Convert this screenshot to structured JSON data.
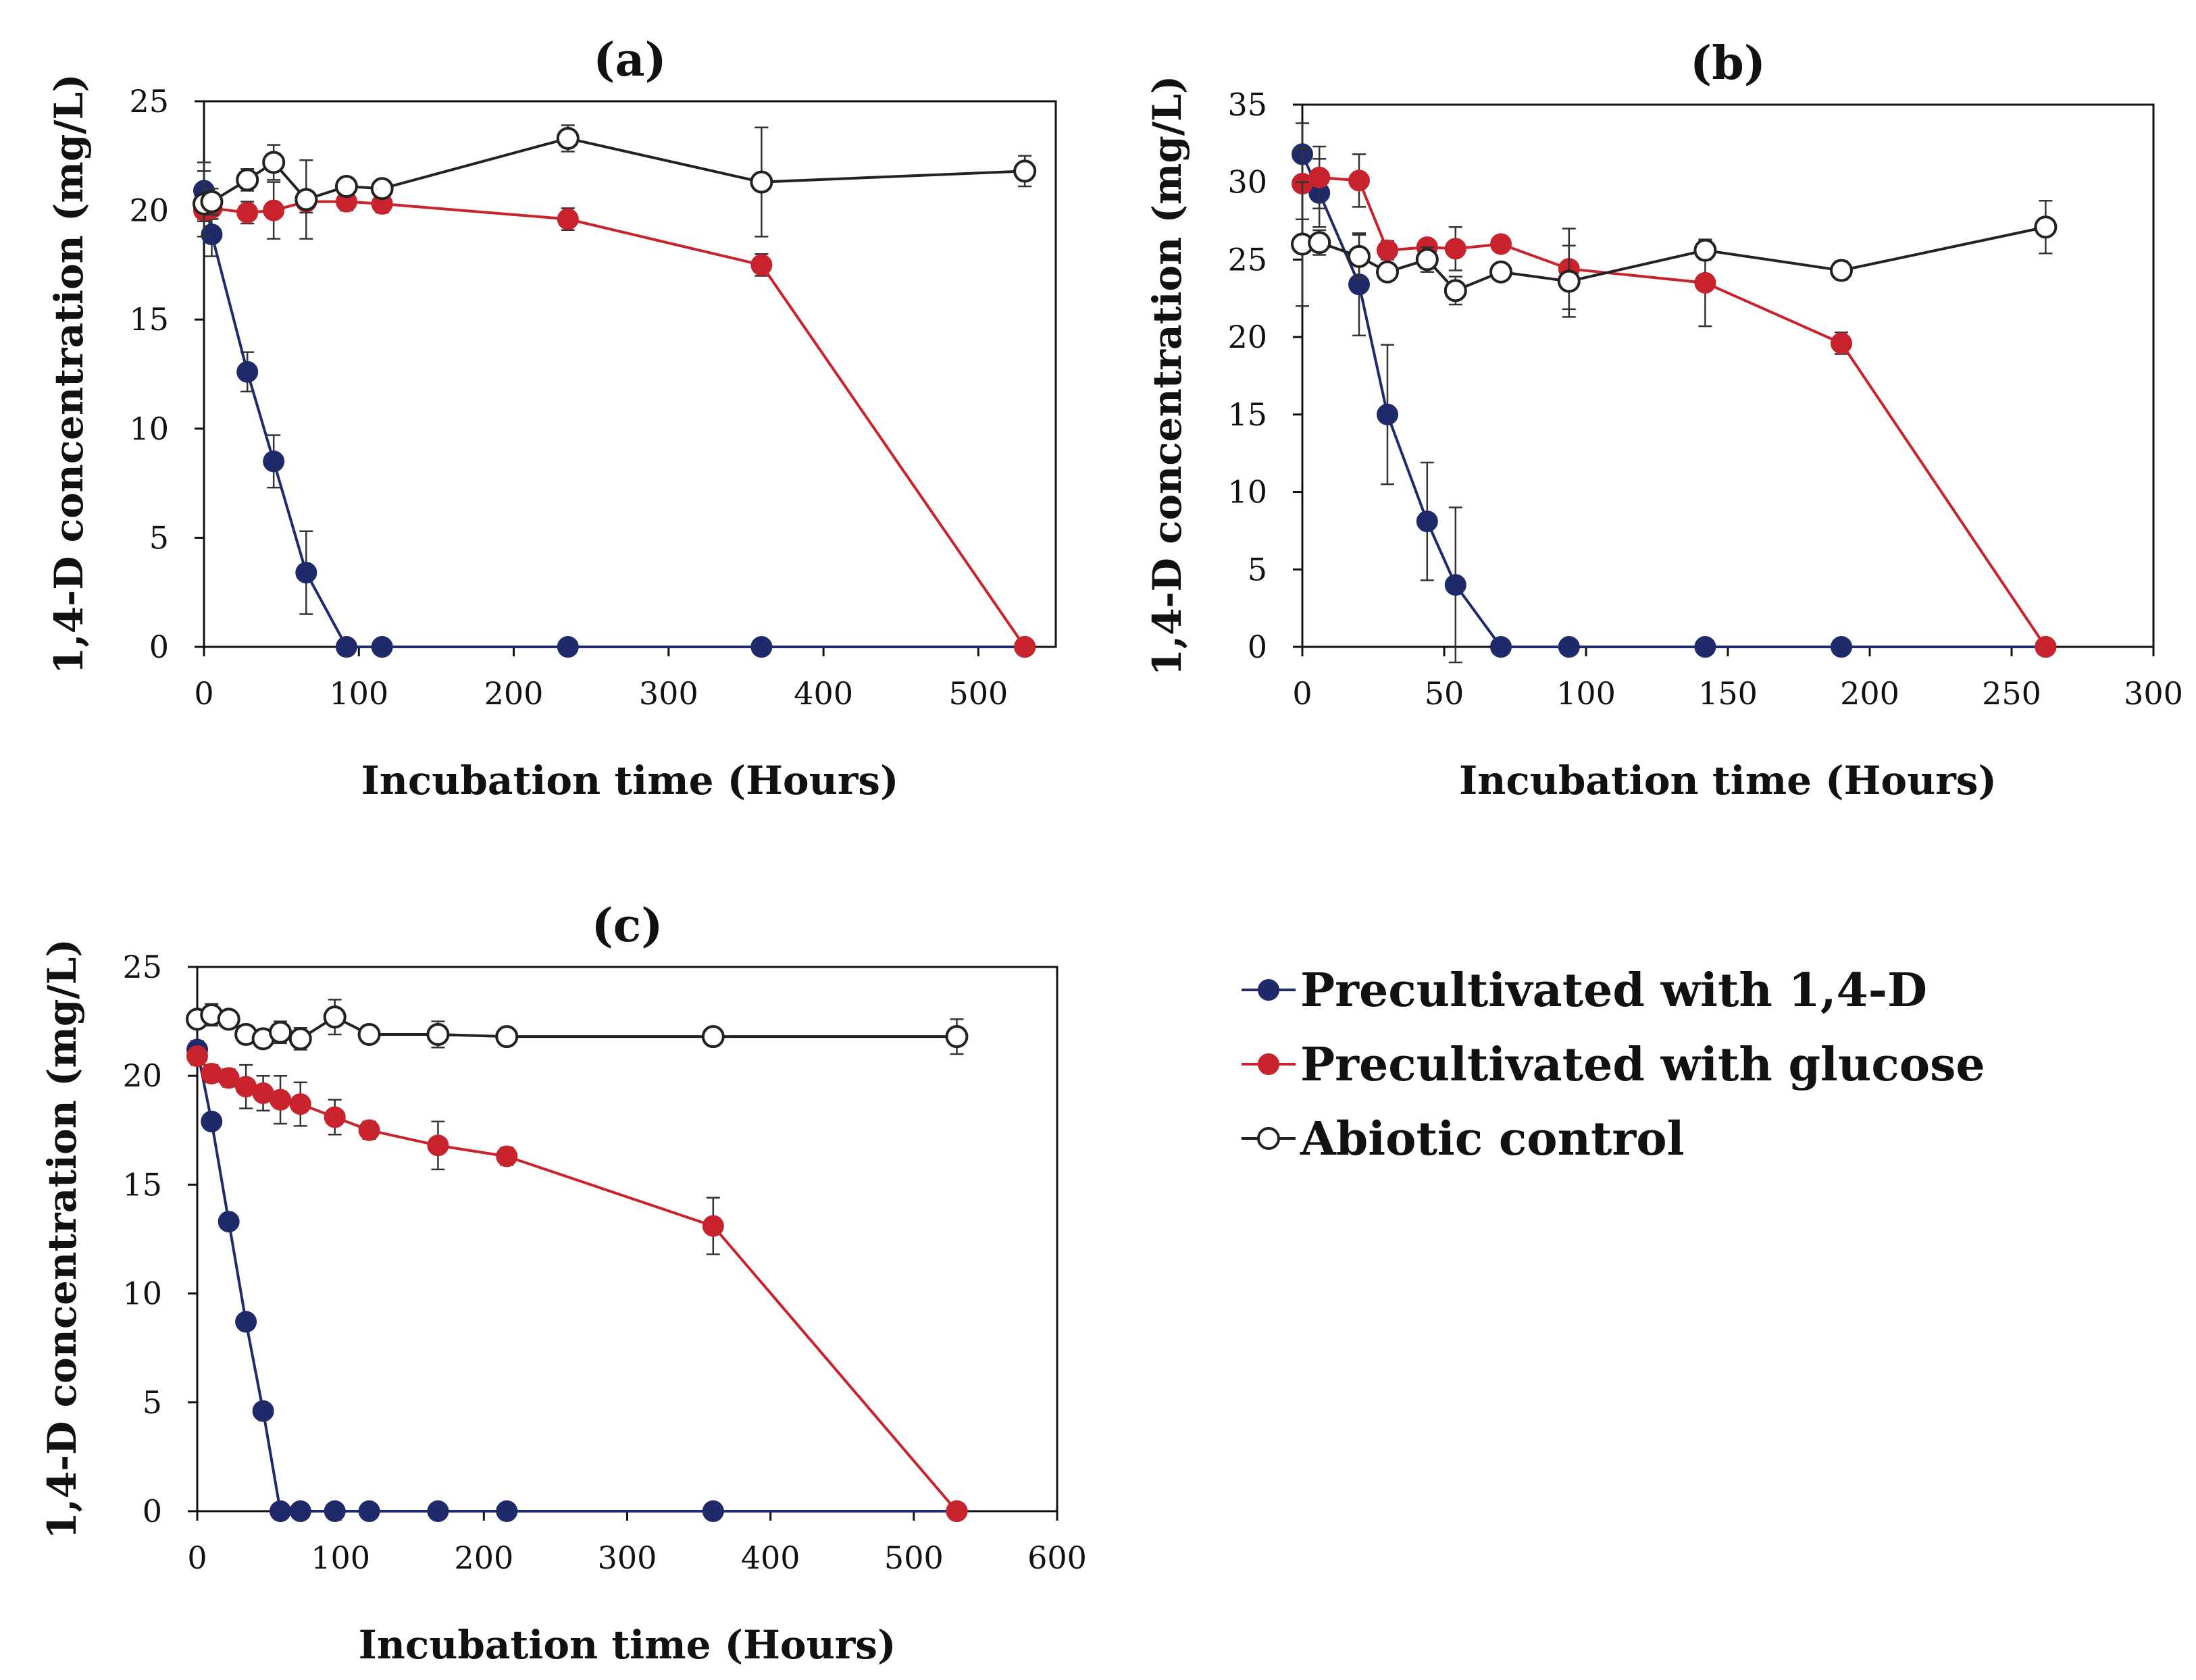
{
  "chart_data": [
    {
      "type": "line",
      "title": "(a)",
      "xlabel": "Incubation time (Hours)",
      "ylabel": "1,4-D concentration (mg/L)",
      "xlim": [
        0,
        550
      ],
      "ylim": [
        0,
        25
      ],
      "xticks": [
        0,
        100,
        200,
        300,
        400,
        500
      ],
      "yticks": [
        0,
        5,
        10,
        15,
        20,
        25
      ],
      "series": [
        {
          "name": "Precultivated with 1,4-D",
          "color": "#1f2a6b",
          "marker": "filled",
          "x": [
            0,
            5,
            28,
            45,
            66,
            92,
            115,
            235,
            360,
            530
          ],
          "y": [
            20.9,
            18.9,
            12.6,
            8.5,
            3.4,
            0,
            0,
            0,
            0,
            0
          ],
          "err": [
            1.3,
            1.0,
            0.9,
            1.2,
            1.9,
            0,
            0,
            0,
            0,
            0
          ]
        },
        {
          "name": "Precultivated with glucose",
          "color": "#c8232c",
          "marker": "filled",
          "x": [
            0,
            5,
            28,
            45,
            66,
            92,
            115,
            235,
            360,
            530
          ],
          "y": [
            20.0,
            20.1,
            19.9,
            20.0,
            20.4,
            20.4,
            20.3,
            19.6,
            17.5,
            0
          ],
          "err": [
            0.5,
            0.5,
            0.5,
            1.3,
            0.5,
            0.4,
            0.4,
            0.5,
            0.5,
            0
          ]
        },
        {
          "name": "Abiotic control",
          "color": "#222222",
          "marker": "open",
          "x": [
            0,
            5,
            28,
            45,
            66,
            92,
            115,
            235,
            360,
            530
          ],
          "y": [
            20.3,
            20.4,
            21.4,
            22.2,
            20.5,
            21.1,
            21.0,
            23.3,
            21.3,
            21.8
          ],
          "err": [
            1.5,
            0.6,
            0.5,
            0.8,
            1.8,
            0.4,
            0.3,
            0.6,
            2.5,
            0.7
          ]
        }
      ]
    },
    {
      "type": "line",
      "title": "(b)",
      "xlabel": "Incubation time (Hours)",
      "ylabel": "1,4-D concentration (mg/L)",
      "xlim": [
        0,
        300
      ],
      "ylim": [
        0,
        35
      ],
      "xticks": [
        0,
        50,
        100,
        150,
        200,
        250,
        300
      ],
      "yticks": [
        0,
        5,
        10,
        15,
        20,
        25,
        30,
        35
      ],
      "series": [
        {
          "name": "Precultivated with 1,4-D",
          "color": "#1f2a6b",
          "marker": "filled",
          "x": [
            0,
            6,
            20,
            30,
            44,
            54,
            70,
            94,
            142,
            190,
            262
          ],
          "y": [
            31.8,
            29.3,
            23.4,
            15.0,
            8.1,
            4.0,
            0,
            0,
            0,
            0,
            0
          ],
          "err": [
            2.0,
            2.2,
            3.3,
            4.5,
            3.8,
            5.0,
            0,
            0,
            0,
            0,
            0
          ]
        },
        {
          "name": "Precultivated with glucose",
          "color": "#c8232c",
          "marker": "filled",
          "x": [
            0,
            6,
            20,
            30,
            44,
            54,
            70,
            94,
            142,
            190,
            262
          ],
          "y": [
            29.9,
            30.3,
            30.1,
            25.6,
            25.8,
            25.7,
            26.0,
            24.4,
            23.5,
            19.6,
            0
          ],
          "err": [
            2.3,
            2.0,
            1.7,
            0.6,
            0.5,
            1.4,
            0.5,
            2.6,
            2.8,
            0.7,
            0
          ]
        },
        {
          "name": "Abiotic control",
          "color": "#222222",
          "marker": "open",
          "x": [
            0,
            6,
            20,
            30,
            44,
            54,
            70,
            94,
            142,
            190,
            262
          ],
          "y": [
            26.0,
            26.1,
            25.2,
            24.2,
            25.0,
            23.0,
            24.2,
            23.6,
            25.6,
            24.3,
            27.1
          ],
          "err": [
            4.0,
            0.8,
            1.4,
            0.5,
            0.8,
            0.9,
            0.5,
            2.3,
            0.6,
            0.6,
            1.7
          ]
        }
      ]
    },
    {
      "type": "line",
      "title": "(c)",
      "xlabel": "Incubation time (Hours)",
      "ylabel": "1,4-D concentration (mg/L)",
      "xlim": [
        0,
        600
      ],
      "ylim": [
        0,
        25
      ],
      "xticks": [
        0,
        100,
        200,
        300,
        400,
        500,
        600
      ],
      "yticks": [
        0,
        5,
        10,
        15,
        20,
        25
      ],
      "series": [
        {
          "name": "Precultivated with 1,4-D",
          "color": "#1f2a6b",
          "marker": "filled",
          "x": [
            0,
            10,
            22,
            34,
            46,
            58,
            72,
            96,
            120,
            168,
            216,
            360,
            530
          ],
          "y": [
            21.2,
            17.9,
            13.3,
            8.7,
            4.6,
            0,
            0,
            0,
            0,
            0,
            0,
            0,
            0
          ],
          "err": [
            0.4,
            0.3,
            0.3,
            0.3,
            0.3,
            0,
            0,
            0,
            0,
            0,
            0,
            0,
            0
          ]
        },
        {
          "name": "Precultivated with glucose",
          "color": "#c8232c",
          "marker": "filled",
          "x": [
            0,
            10,
            22,
            34,
            46,
            58,
            72,
            96,
            120,
            168,
            216,
            360,
            530
          ],
          "y": [
            20.9,
            20.1,
            19.9,
            19.5,
            19.2,
            18.9,
            18.7,
            18.1,
            17.5,
            16.8,
            16.3,
            13.1,
            0
          ],
          "err": [
            0.4,
            0.4,
            0.4,
            1.0,
            0.8,
            1.1,
            1.0,
            0.8,
            0.4,
            1.1,
            0.4,
            1.3,
            0
          ]
        },
        {
          "name": "Abiotic control",
          "color": "#222222",
          "marker": "open",
          "x": [
            0,
            10,
            22,
            34,
            46,
            58,
            72,
            96,
            120,
            168,
            216,
            360,
            530
          ],
          "y": [
            22.6,
            22.8,
            22.6,
            21.9,
            21.7,
            22.0,
            21.7,
            22.7,
            21.9,
            21.9,
            21.8,
            21.8,
            21.8
          ],
          "err": [
            0.4,
            0.5,
            0.4,
            0.4,
            0.4,
            0.5,
            0.5,
            0.8,
            0.4,
            0.6,
            0.3,
            0.3,
            0.8
          ]
        }
      ]
    }
  ],
  "legend": {
    "placement": "bottom-right",
    "items": [
      {
        "label": "Precultivated with 1,4-D",
        "color": "#1f2a6b",
        "marker": "filled"
      },
      {
        "label": "Precultivated with glucose",
        "color": "#c8232c",
        "marker": "filled"
      },
      {
        "label": "Abiotic control",
        "color": "#222222",
        "marker": "open"
      }
    ]
  }
}
